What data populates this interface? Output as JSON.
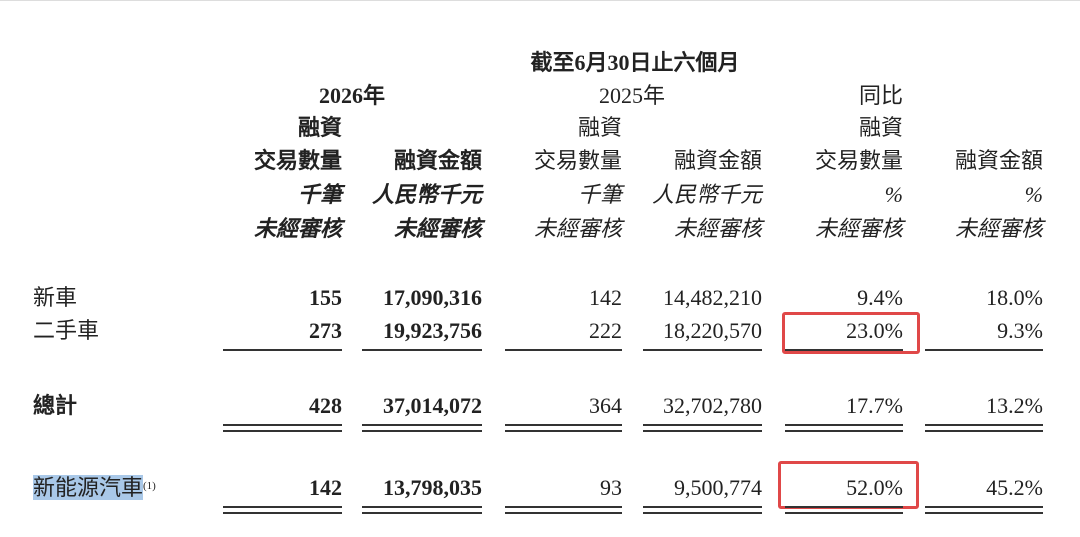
{
  "header": {
    "period": "截至6月30日止六個月",
    "groups": [
      "2026年",
      "2025年",
      "同比"
    ]
  },
  "columns": [
    {
      "line1": "融資",
      "line2": "交易數量",
      "unit": "千筆",
      "audit": "未經審核"
    },
    {
      "line2": "融資金額",
      "unit": "人民幣千元",
      "audit": "未經審核"
    },
    {
      "line1": "融資",
      "line2": "交易數量",
      "unit": "千筆",
      "audit": "未經審核"
    },
    {
      "line2": "融資金額",
      "unit": "人民幣千元",
      "audit": "未經審核"
    },
    {
      "line1": "融資",
      "line2": "交易數量",
      "unit": "%",
      "audit": "未經審核"
    },
    {
      "line2": "融資金額",
      "unit": "%",
      "audit": "未經審核"
    }
  ],
  "rows": [
    {
      "label": "新車",
      "cells": [
        "155",
        "17,090,316",
        "142",
        "14,482,210",
        "9.4%",
        "18.0%"
      ]
    },
    {
      "label": "二手車",
      "cells": [
        "273",
        "19,923,756",
        "222",
        "18,220,570",
        "23.0%",
        "9.3%"
      ]
    },
    {
      "label": "總計",
      "cells": [
        "428",
        "37,014,072",
        "364",
        "32,702,780",
        "17.7%",
        "13.2%"
      ]
    },
    {
      "label": "新能源汽車",
      "note": "(1)",
      "cells": [
        "142",
        "13,798,035",
        "93",
        "9,500,774",
        "52.0%",
        "45.2%"
      ]
    }
  ]
}
